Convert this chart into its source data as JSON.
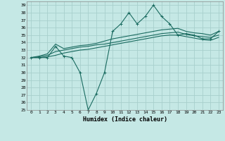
{
  "title": "",
  "xlabel": "Humidex (Indice chaleur)",
  "ylabel": "",
  "background_color": "#c5e8e5",
  "grid_color": "#a8d0cc",
  "line_color": "#1a6b60",
  "xlim": [
    -0.5,
    23.5
  ],
  "ylim": [
    25,
    39.5
  ],
  "yticks": [
    25,
    26,
    27,
    28,
    29,
    30,
    31,
    32,
    33,
    34,
    35,
    36,
    37,
    38,
    39
  ],
  "xticks": [
    0,
    1,
    2,
    3,
    4,
    5,
    6,
    7,
    8,
    9,
    10,
    11,
    12,
    13,
    14,
    15,
    16,
    17,
    18,
    19,
    20,
    21,
    22,
    23
  ],
  "series1_x": [
    0,
    1,
    2,
    3,
    4,
    5,
    6,
    7,
    8,
    9,
    10,
    11,
    12,
    13,
    14,
    15,
    16,
    17,
    18,
    19,
    20,
    21,
    22,
    23
  ],
  "series1_y": [
    32.0,
    32.0,
    32.0,
    33.5,
    32.2,
    32.0,
    30.0,
    25.0,
    27.2,
    30.0,
    35.5,
    36.5,
    38.0,
    36.5,
    37.5,
    39.0,
    37.5,
    36.5,
    35.0,
    35.2,
    35.0,
    34.5,
    34.5,
    35.5
  ],
  "series2_x": [
    0,
    1,
    2,
    3,
    4,
    5,
    6,
    7,
    8,
    9,
    10,
    11,
    12,
    13,
    14,
    15,
    16,
    17,
    18,
    19,
    20,
    21,
    22,
    23
  ],
  "series2_y": [
    32.0,
    32.2,
    32.5,
    33.8,
    33.2,
    33.4,
    33.6,
    33.7,
    33.9,
    34.2,
    34.5,
    34.7,
    34.9,
    35.1,
    35.3,
    35.5,
    35.7,
    35.8,
    35.9,
    35.5,
    35.3,
    35.2,
    35.0,
    35.5
  ],
  "series3_x": [
    0,
    1,
    2,
    3,
    4,
    5,
    6,
    7,
    8,
    9,
    10,
    11,
    12,
    13,
    14,
    15,
    16,
    17,
    18,
    19,
    20,
    21,
    22,
    23
  ],
  "series3_y": [
    32.0,
    32.1,
    32.3,
    32.8,
    33.0,
    33.2,
    33.4,
    33.5,
    33.7,
    33.8,
    34.0,
    34.2,
    34.4,
    34.6,
    34.8,
    35.0,
    35.2,
    35.3,
    35.4,
    35.1,
    34.9,
    34.8,
    34.7,
    35.0
  ],
  "series4_x": [
    0,
    1,
    2,
    3,
    4,
    5,
    6,
    7,
    8,
    9,
    10,
    11,
    12,
    13,
    14,
    15,
    16,
    17,
    18,
    19,
    20,
    21,
    22,
    23
  ],
  "series4_y": [
    32.0,
    32.0,
    32.1,
    32.3,
    32.6,
    32.8,
    33.0,
    33.1,
    33.3,
    33.5,
    33.7,
    33.9,
    34.1,
    34.3,
    34.5,
    34.7,
    34.9,
    35.0,
    35.0,
    34.8,
    34.6,
    34.4,
    34.3,
    34.7
  ]
}
